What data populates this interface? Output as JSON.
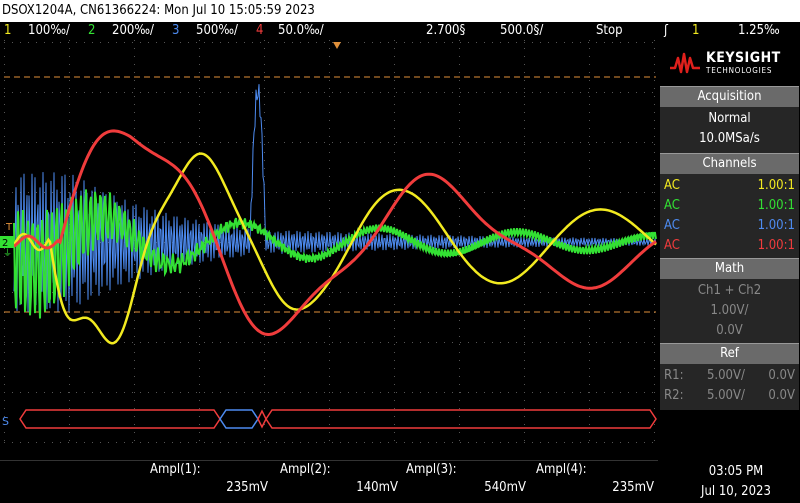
{
  "title": "DSOX1204A, CN61366224: Mon Jul 10 15:05:59 2023",
  "status": {
    "ch1": {
      "num": "1",
      "scale": "100‰/"
    },
    "ch2": {
      "num": "2",
      "scale": "200‰/"
    },
    "ch3": {
      "num": "3",
      "scale": "500‰/"
    },
    "ch4": {
      "num": "4",
      "scale": "50.0‰/"
    },
    "delay": "2.700§",
    "timebase": "500.0§/",
    "run_state": "Stop",
    "trigger_source": "1",
    "trigger_level": "1.25‰",
    "trigger_icon": "trigger-edge-icon"
  },
  "logo": {
    "brand": "KEYSIGHT",
    "sub": "TECHNOLOGIES"
  },
  "acquisition": {
    "header": "Acquisition",
    "mode": "Normal",
    "rate": "10.0MSa/s"
  },
  "channels": {
    "header": "Channels",
    "rows": [
      {
        "coupling": "AC",
        "probe": "1.00:1",
        "color": "#f2ea20"
      },
      {
        "coupling": "AC",
        "probe": "1.00:1",
        "color": "#33e033"
      },
      {
        "coupling": "AC",
        "probe": "1.00:1",
        "color": "#4d8bf0"
      },
      {
        "coupling": "AC",
        "probe": "1.00:1",
        "color": "#f03c3c"
      }
    ]
  },
  "math": {
    "header": "Math",
    "expr": "Ch1 + Ch2",
    "scale": "1.00V/",
    "offset": "0.0V"
  },
  "ref": {
    "header": "Ref",
    "rows": [
      {
        "name": "R1:",
        "scale": "5.00V/",
        "offset": "0.0V"
      },
      {
        "name": "R2:",
        "scale": "5.00V/",
        "offset": "0.0V"
      }
    ]
  },
  "measurements": [
    {
      "label": "Ampl(1):",
      "value": "235mV"
    },
    {
      "label": "Ampl(2):",
      "value": "140mV"
    },
    {
      "label": "Ampl(3):",
      "value": "540mV"
    },
    {
      "label": "Ampl(4):",
      "value": "235mV"
    }
  ],
  "clock": {
    "time": "03:05 PM",
    "date": "Jul 10, 2023"
  },
  "markers": {
    "trigger": "T",
    "ch2": "2",
    "ground": "⏚",
    "serial": "S"
  },
  "colors": {
    "ch1": "#f2ea20",
    "ch2": "#33e033",
    "ch3": "#4d8bf0",
    "ch4": "#f03c3c",
    "cursor": "#e0903a"
  }
}
